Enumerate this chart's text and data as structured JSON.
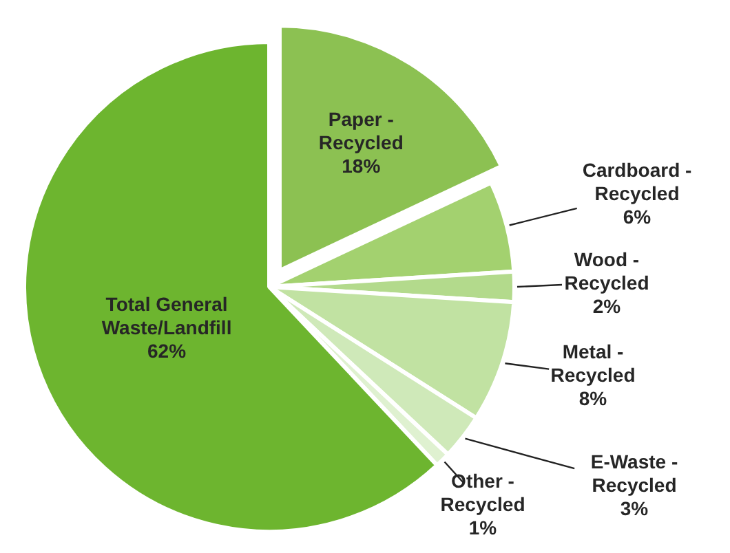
{
  "chart_data": {
    "type": "pie",
    "categories": [
      "Paper - Recycled",
      "Cardboard - Recycled",
      "Wood - Recycled",
      "Metal - Recycled",
      "E-Waste - Recycled",
      "Other - Recycled",
      "Total General Waste/Landfill"
    ],
    "values": [
      18,
      6,
      2,
      8,
      3,
      1,
      62
    ],
    "colors": [
      "#8cc152",
      "#a3d16f",
      "#b3da8c",
      "#c1e2a2",
      "#cfe9b9",
      "#dff1d0",
      "#6db52f"
    ],
    "value_labels": [
      "18%",
      "6%",
      "2%",
      "8%",
      "3%",
      "1%",
      "62%"
    ]
  }
}
